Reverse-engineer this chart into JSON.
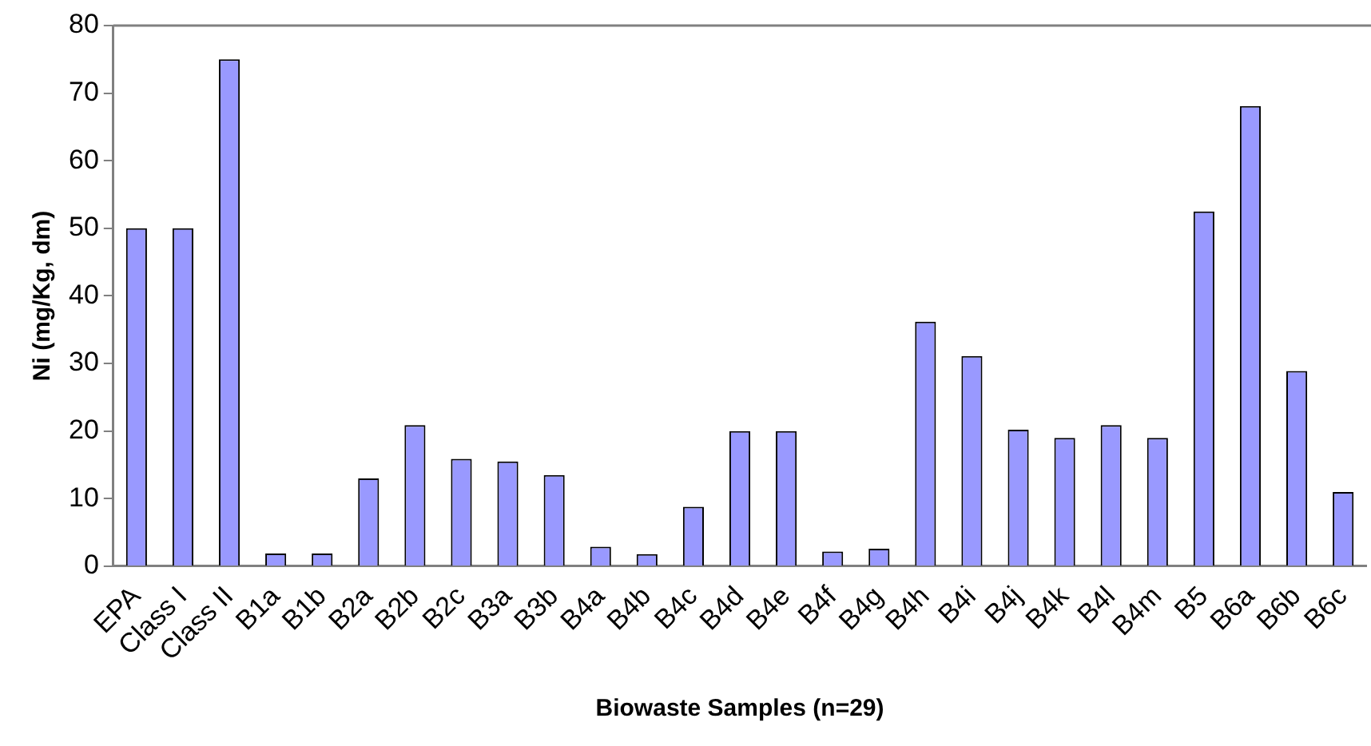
{
  "chart_data": {
    "type": "bar",
    "xlabel": "Biowaste Samples (n=29)",
    "ylabel": "Ni (mg/Kg, dm)",
    "categories": [
      "EPA",
      "Class I",
      "Class II",
      "B1a",
      "B1b",
      "B2a",
      "B2b",
      "B2c",
      "B3a",
      "B3b",
      "B4a",
      "B4b",
      "B4c",
      "B4d",
      "B4e",
      "B4f",
      "B4g",
      "B4h",
      "B4i",
      "B4j",
      "B4k",
      "B4l",
      "B4m",
      "B5",
      "B6a",
      "B6b",
      "B6c"
    ],
    "values": [
      50,
      50,
      75,
      1.9,
      1.9,
      13,
      20.9,
      15.9,
      15.5,
      13.5,
      2.9,
      1.8,
      8.8,
      20,
      20,
      2.2,
      2.6,
      36.2,
      31.1,
      20.2,
      19,
      20.9,
      19,
      52.5,
      68.1,
      28.9,
      11
    ],
    "color": "#9999ff",
    "ylim": [
      0,
      80
    ],
    "yticks": [
      0,
      10,
      20,
      30,
      40,
      50,
      60,
      70,
      80
    ],
    "grid": false,
    "legend": false
  }
}
